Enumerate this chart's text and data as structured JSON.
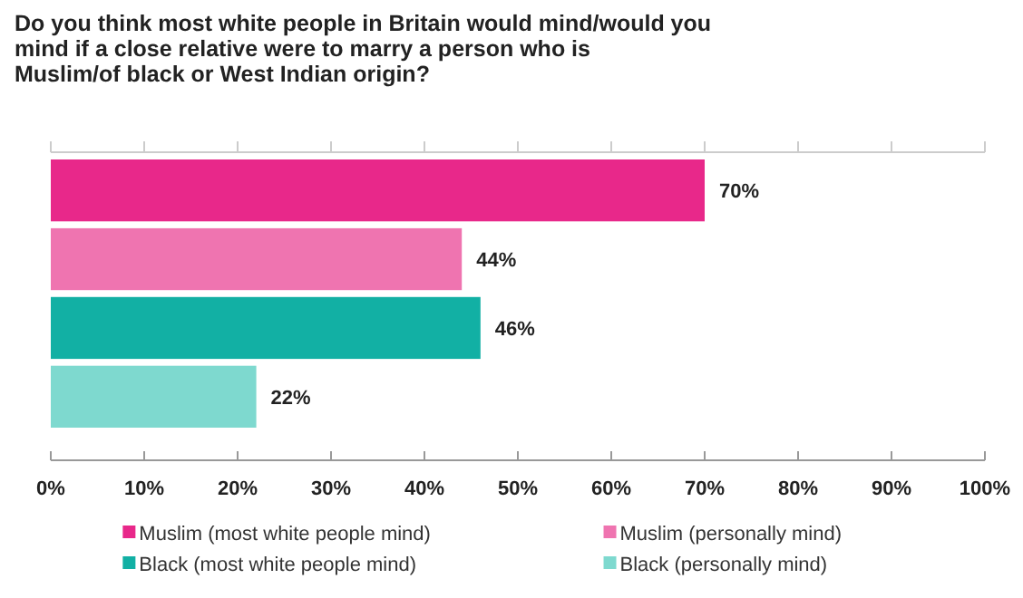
{
  "chart_data": {
    "type": "bar",
    "orientation": "horizontal",
    "stacked": true,
    "title": "Do you think most white people in Britain would mind/would you mind if a close relative were to marry a person who is Muslim/of black or West Indian origin?",
    "categories": [
      null,
      null,
      null,
      null
    ],
    "series": [
      {
        "name": "Muslim (most white people mind)",
        "color": "#e8288a",
        "values": [
          70,
          0,
          0,
          0
        ],
        "value_labels": [
          "70%",
          null,
          null,
          null
        ]
      },
      {
        "name": "Muslim (personally mind)",
        "color": "#ef74b0",
        "values": [
          0,
          44,
          0,
          0
        ],
        "value_labels": [
          null,
          "44%",
          null,
          null
        ]
      },
      {
        "name": "Black (most white people mind)",
        "color": "#12b0a4",
        "values": [
          0,
          0,
          46,
          0
        ],
        "value_labels": [
          null,
          null,
          "46%",
          null
        ]
      },
      {
        "name": "Black (personally mind)",
        "color": "#7ed9cf",
        "values": [
          0,
          0,
          0,
          22
        ],
        "value_labels": [
          null,
          null,
          null,
          "22%"
        ]
      }
    ],
    "xlim": [
      0,
      100
    ],
    "xticks": [
      {
        "value": 0,
        "label": "0%"
      },
      {
        "value": 10,
        "label": "10%"
      },
      {
        "value": 20,
        "label": "20%"
      },
      {
        "value": 30,
        "label": "30%"
      },
      {
        "value": 40,
        "label": "40%"
      },
      {
        "value": 50,
        "label": "50%"
      },
      {
        "value": 60,
        "label": "60%"
      },
      {
        "value": 70,
        "label": "70%"
      },
      {
        "value": 80,
        "label": "80%"
      },
      {
        "value": 90,
        "label": "90%"
      },
      {
        "value": 100,
        "label": "100%"
      }
    ],
    "grid": false,
    "legend": "bottom"
  }
}
